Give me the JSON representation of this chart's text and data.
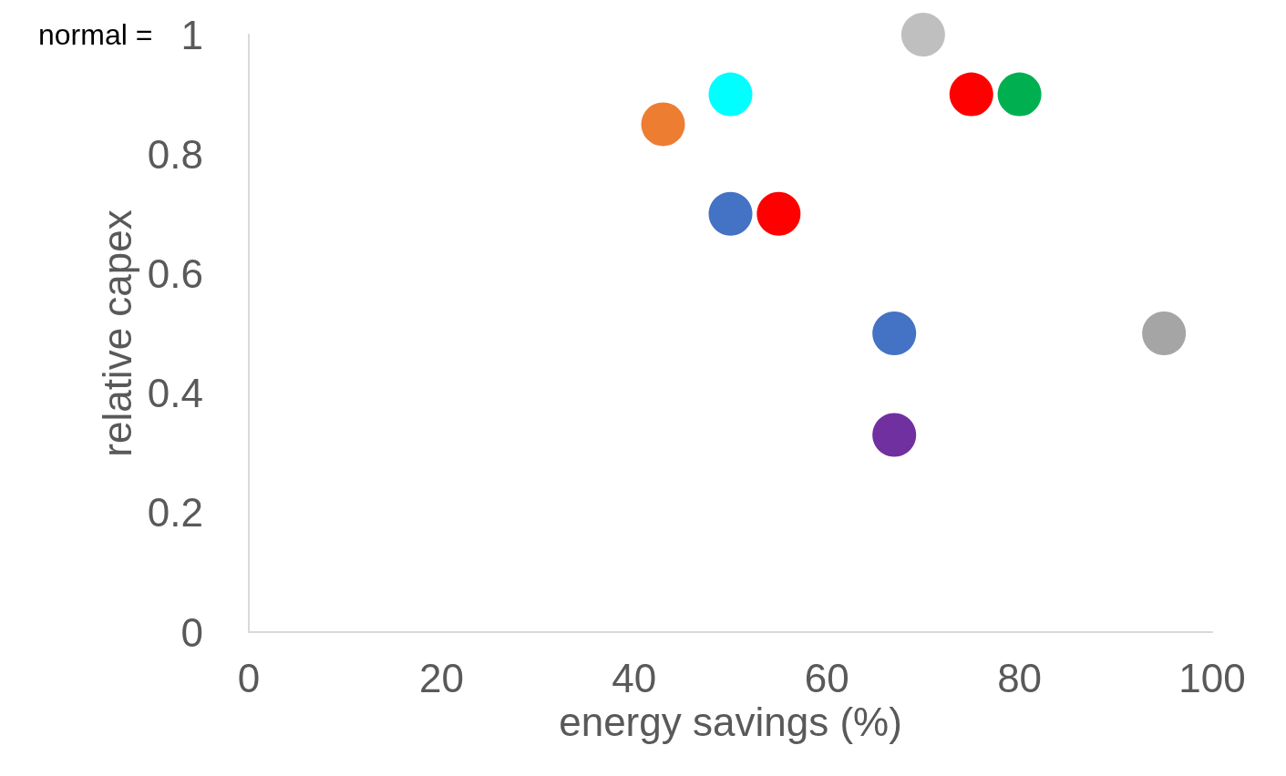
{
  "chart_data": {
    "type": "scatter",
    "xlabel": "energy savings (%)",
    "ylabel": "relative capex",
    "x": [
      70,
      75,
      80,
      50,
      43,
      50,
      55,
      67,
      95,
      67
    ],
    "values": [
      1.0,
      0.9,
      0.9,
      0.9,
      0.85,
      0.7,
      0.7,
      0.5,
      0.5,
      0.33
    ],
    "colors": [
      "#bfbfbf",
      "#ff0000",
      "#00b050",
      "#00ffff",
      "#ed7d31",
      "#4472c4",
      "#ff0000",
      "#4472c4",
      "#a5a5a5",
      "#7030a0"
    ],
    "xlim": [
      0,
      100
    ],
    "xticks": [
      0,
      20,
      40,
      60,
      80,
      100
    ],
    "ylim": [
      0,
      1
    ],
    "yticks": [
      0,
      0.2,
      0.4,
      0.6,
      0.8,
      1
    ],
    "annotations": [
      "normal ="
    ],
    "grid": false,
    "marker": "circle"
  }
}
